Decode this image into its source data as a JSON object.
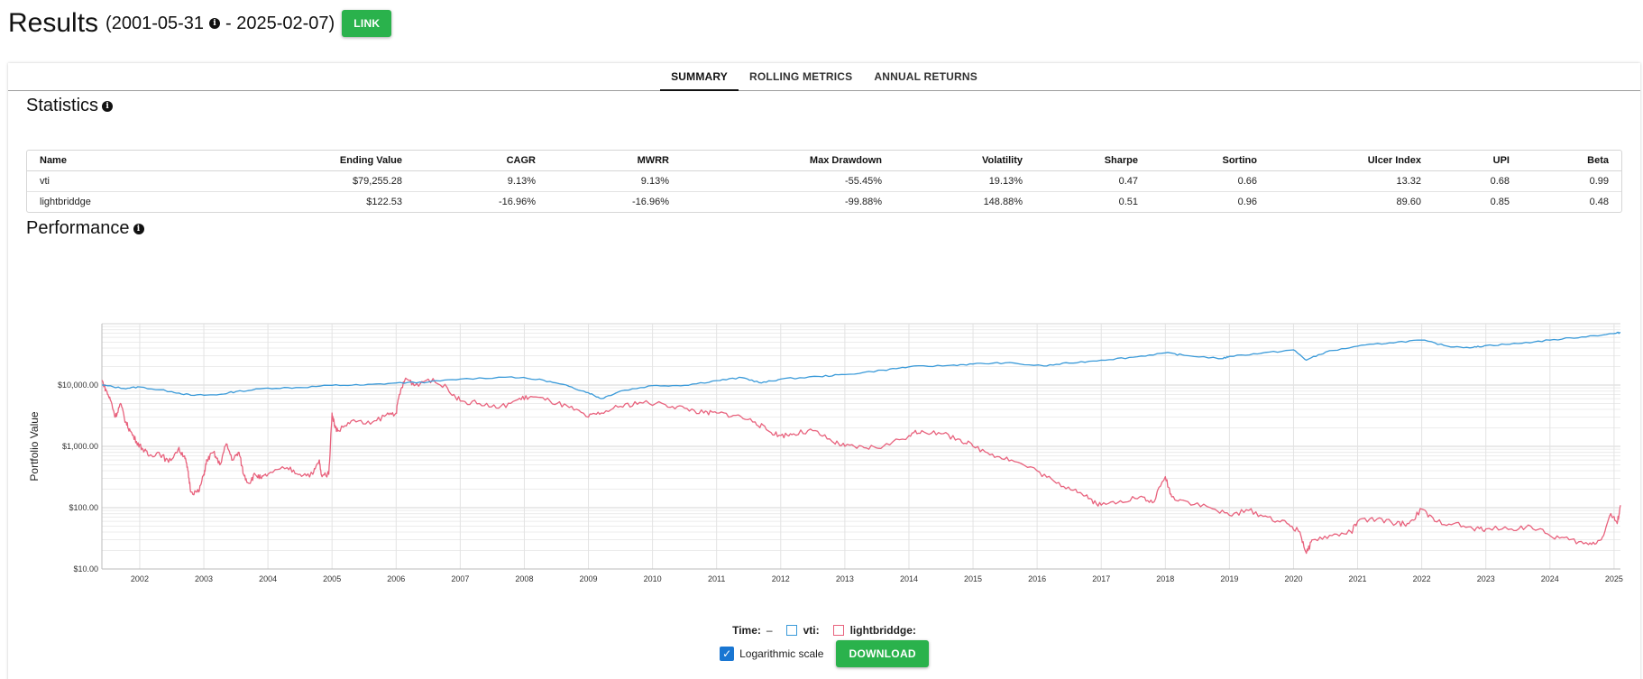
{
  "header": {
    "title": "Results",
    "range_open": "(2001-05-31",
    "range_close": "- 2025-02-07)",
    "link_label": "LINK"
  },
  "tabs": [
    {
      "label": "SUMMARY",
      "active": true
    },
    {
      "label": "ROLLING METRICS",
      "active": false
    },
    {
      "label": "ANNUAL RETURNS",
      "active": false
    }
  ],
  "statistics": {
    "title": "Statistics",
    "columns": [
      "Name",
      "Ending Value",
      "CAGR",
      "MWRR",
      "Max Drawdown",
      "Volatility",
      "Sharpe",
      "Sortino",
      "Ulcer Index",
      "UPI",
      "Beta"
    ],
    "rows": [
      [
        "vti",
        "$79,255.28",
        "9.13%",
        "9.13%",
        "-55.45%",
        "19.13%",
        "0.47",
        "0.66",
        "13.32",
        "0.68",
        "0.99"
      ],
      [
        "lightbriddge",
        "$122.53",
        "-16.96%",
        "-16.96%",
        "-99.88%",
        "148.88%",
        "0.51",
        "0.96",
        "89.60",
        "0.85",
        "0.48"
      ]
    ]
  },
  "performance": {
    "title": "Performance",
    "legend": {
      "time_label": "Time:",
      "time_value": "–",
      "series": [
        {
          "label": "vti:",
          "color": "#3a9ad9"
        },
        {
          "label": "lightbriddge:",
          "color": "#e8627d"
        }
      ]
    },
    "log_scale_label": "Logarithmic scale",
    "log_scale_checked": true,
    "download_label": "DOWNLOAD"
  },
  "colors": {
    "accent_green": "#2ab24c",
    "vti_line": "#3a9ad9",
    "lightbriddge_line": "#e8627d",
    "checkbox_blue": "#1976d2"
  },
  "chart_data": {
    "type": "line",
    "ylabel": "Portfolio Value",
    "xlabel": "",
    "y_scale": "log",
    "ylim": [
      10,
      100000
    ],
    "y_ticks": [
      {
        "value": 10,
        "label": "$10.00"
      },
      {
        "value": 100,
        "label": "$100.00"
      },
      {
        "value": 1000,
        "label": "$1,000.00"
      },
      {
        "value": 10000,
        "label": "$10,000.00"
      }
    ],
    "xlim": [
      2001.41,
      2025.1
    ],
    "x_ticks": [
      "2002",
      "2003",
      "2004",
      "2005",
      "2006",
      "2007",
      "2008",
      "2009",
      "2010",
      "2011",
      "2012",
      "2013",
      "2014",
      "2015",
      "2016",
      "2017",
      "2018",
      "2019",
      "2020",
      "2021",
      "2022",
      "2023",
      "2024",
      "2025"
    ],
    "grid": true,
    "series": [
      {
        "name": "vti",
        "points": [
          [
            2001.41,
            10000
          ],
          [
            2001.75,
            8800
          ],
          [
            2002.0,
            9300
          ],
          [
            2002.5,
            7800
          ],
          [
            2002.8,
            6800
          ],
          [
            2003.2,
            6900
          ],
          [
            2003.5,
            7800
          ],
          [
            2004.0,
            8900
          ],
          [
            2004.5,
            9100
          ],
          [
            2005.0,
            9900
          ],
          [
            2005.5,
            10000
          ],
          [
            2006.0,
            10800
          ],
          [
            2006.5,
            11200
          ],
          [
            2007.0,
            12500
          ],
          [
            2007.8,
            13600
          ],
          [
            2008.3,
            12000
          ],
          [
            2008.7,
            9500
          ],
          [
            2009.0,
            7500
          ],
          [
            2009.2,
            6000
          ],
          [
            2009.5,
            8000
          ],
          [
            2010.0,
            9800
          ],
          [
            2010.5,
            9900
          ],
          [
            2011.0,
            11800
          ],
          [
            2011.4,
            13200
          ],
          [
            2011.7,
            10800
          ],
          [
            2012.0,
            12500
          ],
          [
            2012.6,
            13800
          ],
          [
            2013.0,
            14800
          ],
          [
            2013.6,
            17500
          ],
          [
            2014.0,
            19800
          ],
          [
            2014.6,
            20800
          ],
          [
            2015.0,
            22000
          ],
          [
            2015.5,
            23000
          ],
          [
            2016.1,
            20500
          ],
          [
            2016.5,
            22800
          ],
          [
            2017.0,
            25500
          ],
          [
            2017.5,
            28500
          ],
          [
            2018.0,
            33500
          ],
          [
            2018.3,
            30500
          ],
          [
            2018.9,
            27000
          ],
          [
            2019.0,
            29500
          ],
          [
            2019.5,
            33000
          ],
          [
            2020.0,
            37500
          ],
          [
            2020.2,
            25500
          ],
          [
            2020.5,
            34500
          ],
          [
            2021.0,
            43000
          ],
          [
            2021.5,
            49000
          ],
          [
            2022.0,
            54000
          ],
          [
            2022.4,
            43000
          ],
          [
            2022.8,
            41000
          ],
          [
            2023.0,
            44000
          ],
          [
            2023.5,
            47500
          ],
          [
            2024.0,
            54000
          ],
          [
            2024.5,
            61000
          ],
          [
            2025.0,
            69000
          ],
          [
            2025.1,
            72000
          ]
        ]
      },
      {
        "name": "lightbriddge",
        "points": [
          [
            2001.41,
            12000
          ],
          [
            2001.48,
            8000
          ],
          [
            2001.55,
            5500
          ],
          [
            2001.62,
            3000
          ],
          [
            2001.7,
            5000
          ],
          [
            2001.78,
            2500
          ],
          [
            2001.85,
            1800
          ],
          [
            2001.95,
            1200
          ],
          [
            2002.05,
            900
          ],
          [
            2002.15,
            700
          ],
          [
            2002.3,
            800
          ],
          [
            2002.45,
            550
          ],
          [
            2002.6,
            900
          ],
          [
            2002.7,
            700
          ],
          [
            2002.75,
            400
          ],
          [
            2002.8,
            180
          ],
          [
            2002.92,
            180
          ],
          [
            2003.0,
            350
          ],
          [
            2003.05,
            600
          ],
          [
            2003.15,
            800
          ],
          [
            2003.25,
            500
          ],
          [
            2003.35,
            1100
          ],
          [
            2003.45,
            600
          ],
          [
            2003.55,
            800
          ],
          [
            2003.62,
            350
          ],
          [
            2003.7,
            250
          ],
          [
            2003.8,
            350
          ],
          [
            2003.9,
            300
          ],
          [
            2004.0,
            350
          ],
          [
            2004.3,
            450
          ],
          [
            2004.5,
            350
          ],
          [
            2004.7,
            350
          ],
          [
            2004.8,
            600
          ],
          [
            2004.83,
            350
          ],
          [
            2004.95,
            350
          ],
          [
            2005.0,
            3500
          ],
          [
            2005.05,
            2000
          ],
          [
            2005.1,
            1800
          ],
          [
            2005.3,
            2600
          ],
          [
            2005.6,
            2300
          ],
          [
            2005.85,
            3300
          ],
          [
            2006.0,
            3500
          ],
          [
            2006.05,
            7000
          ],
          [
            2006.15,
            13000
          ],
          [
            2006.3,
            10000
          ],
          [
            2006.5,
            12500
          ],
          [
            2006.8,
            9000
          ],
          [
            2007.0,
            5500
          ],
          [
            2007.3,
            5000
          ],
          [
            2007.6,
            4200
          ],
          [
            2007.9,
            5800
          ],
          [
            2008.1,
            6500
          ],
          [
            2008.4,
            5500
          ],
          [
            2008.7,
            4300
          ],
          [
            2009.0,
            3000
          ],
          [
            2009.2,
            3500
          ],
          [
            2009.5,
            4500
          ],
          [
            2009.8,
            5200
          ],
          [
            2010.2,
            4800
          ],
          [
            2010.5,
            4200
          ],
          [
            2010.8,
            3500
          ],
          [
            2011.0,
            3500
          ],
          [
            2011.3,
            3200
          ],
          [
            2011.6,
            2500
          ],
          [
            2011.8,
            1800
          ],
          [
            2012.0,
            1500
          ],
          [
            2012.2,
            1600
          ],
          [
            2012.5,
            1800
          ],
          [
            2012.8,
            1200
          ],
          [
            2013.0,
            1000
          ],
          [
            2013.3,
            950
          ],
          [
            2013.6,
            1000
          ],
          [
            2014.0,
            1500
          ],
          [
            2014.2,
            1800
          ],
          [
            2014.5,
            1600
          ],
          [
            2014.8,
            1300
          ],
          [
            2015.0,
            1000
          ],
          [
            2015.3,
            750
          ],
          [
            2015.6,
            600
          ],
          [
            2016.0,
            400
          ],
          [
            2016.3,
            250
          ],
          [
            2016.6,
            200
          ],
          [
            2016.8,
            140
          ],
          [
            2017.0,
            110
          ],
          [
            2017.3,
            130
          ],
          [
            2017.6,
            150
          ],
          [
            2017.8,
            120
          ],
          [
            2018.0,
            320
          ],
          [
            2018.1,
            150
          ],
          [
            2018.3,
            130
          ],
          [
            2018.7,
            100
          ],
          [
            2019.0,
            75
          ],
          [
            2019.3,
            90
          ],
          [
            2019.6,
            70
          ],
          [
            2019.9,
            55
          ],
          [
            2020.1,
            40
          ],
          [
            2020.2,
            18
          ],
          [
            2020.3,
            30
          ],
          [
            2020.6,
            35
          ],
          [
            2020.9,
            40
          ],
          [
            2021.0,
            60
          ],
          [
            2021.3,
            65
          ],
          [
            2021.6,
            55
          ],
          [
            2021.8,
            55
          ],
          [
            2022.0,
            95
          ],
          [
            2022.2,
            60
          ],
          [
            2022.5,
            55
          ],
          [
            2022.8,
            45
          ],
          [
            2023.0,
            45
          ],
          [
            2023.4,
            45
          ],
          [
            2023.7,
            50
          ],
          [
            2024.0,
            35
          ],
          [
            2024.3,
            30
          ],
          [
            2024.6,
            25
          ],
          [
            2024.8,
            30
          ],
          [
            2024.95,
            80
          ],
          [
            2025.05,
            55
          ],
          [
            2025.1,
            110
          ]
        ]
      }
    ]
  }
}
